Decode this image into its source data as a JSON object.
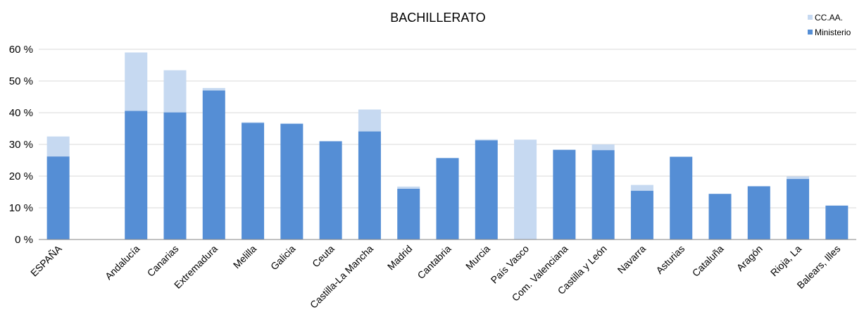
{
  "chart_data": {
    "type": "bar",
    "stacked": true,
    "title": "BACHILLERATO",
    "xlabel": "",
    "ylabel": "",
    "ylim": [
      0,
      60
    ],
    "y_ticks": [
      0,
      10,
      20,
      30,
      40,
      50,
      60
    ],
    "y_tick_suffix": " %",
    "grid": true,
    "legend_position": "top-right",
    "categories": [
      "ESPAÑA",
      "",
      "Andalucía",
      "Canarias",
      "Extremadura",
      "Melilla",
      "Galicia",
      "Ceuta",
      "Castilla-La Mancha",
      "Madrid",
      "Cantabria",
      "Murcia",
      "País Vasco",
      "Com. Valenciana",
      "Castilla y León",
      "Navarra",
      "Asturias",
      "Cataluña",
      "Aragón",
      "Rioja, La",
      "Balears, Illes"
    ],
    "series": [
      {
        "name": "Ministerio",
        "color": "#558ed5",
        "values": [
          26.2,
          null,
          40.6,
          40.1,
          47.0,
          36.8,
          36.5,
          31.0,
          34.1,
          16.0,
          25.7,
          31.3,
          0,
          28.3,
          28.2,
          15.4,
          26.1,
          14.4,
          16.8,
          19.1,
          10.7
        ]
      },
      {
        "name": "CC.AA.",
        "color": "#c6d9f1",
        "values": [
          6.3,
          null,
          18.4,
          13.3,
          0.8,
          0.2,
          0.2,
          0,
          6.9,
          0.7,
          0,
          0.3,
          31.5,
          0,
          1.8,
          1.8,
          0,
          0,
          0,
          0.8,
          0
        ]
      }
    ]
  }
}
